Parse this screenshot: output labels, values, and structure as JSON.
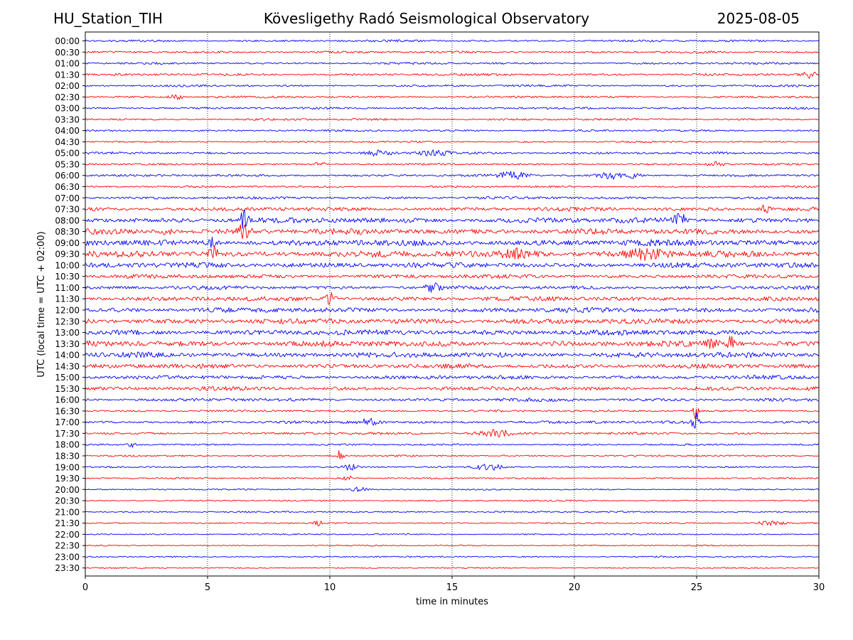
{
  "header": {
    "station": "HU_Station_TIH",
    "observatory": "Kövesligethy Radó Seismological Observatory",
    "date": "2025-08-05"
  },
  "chart_data": {
    "type": "line",
    "title": "Kövesligethy Radó Seismological Observatory",
    "xlabel": "time in minutes",
    "ylabel": "UTC (local time = UTC + 02:00)",
    "xlim": [
      0,
      30
    ],
    "x_ticks": [
      0,
      5,
      10,
      15,
      20,
      25,
      30
    ],
    "grid": "vertical dotted at x ticks",
    "colors": {
      "even_rows": "#0000ff",
      "odd_rows": "#ff0000"
    },
    "rows": [
      "00:00",
      "00:30",
      "01:00",
      "01:30",
      "02:00",
      "02:30",
      "03:00",
      "03:30",
      "04:00",
      "04:30",
      "05:00",
      "05:30",
      "06:00",
      "06:30",
      "07:00",
      "07:30",
      "08:00",
      "08:30",
      "09:00",
      "09:30",
      "10:00",
      "10:30",
      "11:00",
      "11:30",
      "12:00",
      "12:30",
      "13:00",
      "13:30",
      "14:00",
      "14:30",
      "15:00",
      "15:30",
      "16:00",
      "16:30",
      "17:00",
      "17:30",
      "18:00",
      "18:30",
      "19:00",
      "19:30",
      "20:00",
      "20:30",
      "21:00",
      "21:30",
      "22:00",
      "22:30",
      "23:00",
      "23:30"
    ],
    "noise_level": [
      1.2,
      1.2,
      1.2,
      1.4,
      1.2,
      1.2,
      1.2,
      1.2,
      1.1,
      1.0,
      1.3,
      1.1,
      1.3,
      1.1,
      1.5,
      2.2,
      3.0,
      3.2,
      3.5,
      3.5,
      3.0,
      2.2,
      2.0,
      2.5,
      2.8,
      3.0,
      3.0,
      3.2,
      3.0,
      2.5,
      2.2,
      2.2,
      1.8,
      1.2,
      1.6,
      1.3,
      1.0,
      1.0,
      0.9,
      0.9,
      0.8,
      0.8,
      0.9,
      0.8,
      0.8,
      0.7,
      0.8,
      0.7
    ],
    "events": [
      {
        "row": "01:30",
        "minute": 29.6,
        "amplitude": 4,
        "width": 0.3
      },
      {
        "row": "02:30",
        "minute": 3.7,
        "amplitude": 3,
        "width": 0.3
      },
      {
        "row": "05:00",
        "minute": 12.0,
        "amplitude": 3,
        "width": 0.6
      },
      {
        "row": "05:00",
        "minute": 14.3,
        "amplitude": 4,
        "width": 0.6
      },
      {
        "row": "05:30",
        "minute": 9.6,
        "amplitude": 4,
        "width": 0.2
      },
      {
        "row": "05:30",
        "minute": 25.8,
        "amplitude": 3,
        "width": 0.3
      },
      {
        "row": "06:00",
        "minute": 17.5,
        "amplitude": 5,
        "width": 0.6
      },
      {
        "row": "06:00",
        "minute": 21.5,
        "amplitude": 5,
        "width": 0.5
      },
      {
        "row": "06:00",
        "minute": 22.5,
        "amplitude": 5,
        "width": 0.2
      },
      {
        "row": "07:30",
        "minute": 27.8,
        "amplitude": 5,
        "width": 0.2
      },
      {
        "row": "08:00",
        "minute": 6.5,
        "amplitude": 14,
        "width": 0.15
      },
      {
        "row": "08:00",
        "minute": 24.3,
        "amplitude": 8,
        "width": 0.3
      },
      {
        "row": "08:30",
        "minute": 6.55,
        "amplitude": 14,
        "width": 0.25
      },
      {
        "row": "08:30",
        "minute": 3.3,
        "amplitude": 5,
        "width": 0.2
      },
      {
        "row": "09:00",
        "minute": 5.2,
        "amplitude": 8,
        "width": 0.2
      },
      {
        "row": "09:30",
        "minute": 5.2,
        "amplitude": 9,
        "width": 0.2
      },
      {
        "row": "09:30",
        "minute": 17.8,
        "amplitude": 6,
        "width": 0.8
      },
      {
        "row": "09:30",
        "minute": 23.0,
        "amplitude": 6,
        "width": 0.8
      },
      {
        "row": "11:00",
        "minute": 14.2,
        "amplitude": 5,
        "width": 0.3
      },
      {
        "row": "11:30",
        "minute": 10.0,
        "amplitude": 10,
        "width": 0.2
      },
      {
        "row": "13:30",
        "minute": 26.4,
        "amplitude": 9,
        "width": 0.15
      },
      {
        "row": "13:30",
        "minute": 25.7,
        "amplitude": 6,
        "width": 0.3
      },
      {
        "row": "16:30",
        "minute": 24.95,
        "amplitude": 18,
        "width": 0.1
      },
      {
        "row": "17:00",
        "minute": 24.95,
        "amplitude": 18,
        "width": 0.12
      },
      {
        "row": "17:00",
        "minute": 11.6,
        "amplitude": 5,
        "width": 0.4
      },
      {
        "row": "17:30",
        "minute": 16.8,
        "amplitude": 5,
        "width": 0.8
      },
      {
        "row": "18:00",
        "minute": 1.9,
        "amplitude": 5,
        "width": 0.15
      },
      {
        "row": "18:30",
        "minute": 10.45,
        "amplitude": 10,
        "width": 0.12
      },
      {
        "row": "19:00",
        "minute": 10.8,
        "amplitude": 5,
        "width": 0.3
      },
      {
        "row": "19:00",
        "minute": 16.5,
        "amplitude": 5,
        "width": 0.5
      },
      {
        "row": "19:30",
        "minute": 10.7,
        "amplitude": 4,
        "width": 0.3
      },
      {
        "row": "20:00",
        "minute": 11.2,
        "amplitude": 3,
        "width": 0.3
      },
      {
        "row": "21:30",
        "minute": 9.5,
        "amplitude": 4,
        "width": 0.2
      },
      {
        "row": "21:30",
        "minute": 28.0,
        "amplitude": 3,
        "width": 0.6
      }
    ]
  }
}
